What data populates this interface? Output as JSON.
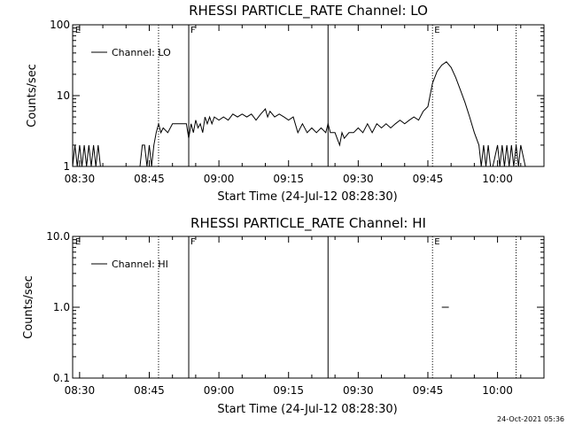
{
  "footer": {
    "timestamp": "24-Oct-2021 05:36"
  },
  "chart_data": [
    {
      "type": "line",
      "title": "RHESSI PARTICLE_RATE Channel: LO",
      "xlabel": "Start Time (24-Jul-12 08:28:30)",
      "ylabel": "Counts/sec",
      "yscale": "log",
      "ylim": [
        1,
        100
      ],
      "xlim": [
        "08:28:30",
        "10:10:00"
      ],
      "x_ticks": [
        "08:30",
        "08:45",
        "09:00",
        "09:15",
        "09:30",
        "09:45",
        "10:00"
      ],
      "y_ticks": [
        "1",
        "10",
        "100"
      ],
      "legend": {
        "placement": "top-left",
        "entries": [
          "Channel: LO"
        ]
      },
      "markers": [
        {
          "label": "E",
          "time": "08:28:40",
          "style": "none"
        },
        {
          "label": "",
          "time": "08:47:00",
          "style": "dotted"
        },
        {
          "label": "F",
          "time": "08:53:30",
          "style": "solid"
        },
        {
          "label": "",
          "time": "09:23:30",
          "style": "solid"
        },
        {
          "label": "E",
          "time": "09:46:00",
          "style": "dotted"
        },
        {
          "label": "",
          "time": "10:04:00",
          "style": "dotted"
        }
      ],
      "series": [
        {
          "name": "Channel: LO",
          "points": [
            [
              "08:28:30",
              1
            ],
            [
              "08:29:00",
              2
            ],
            [
              "08:29:30",
              1
            ],
            [
              "08:30:00",
              2
            ],
            [
              "08:30:30",
              1
            ],
            [
              "08:31:00",
              2
            ],
            [
              "08:31:30",
              1
            ],
            [
              "08:32:00",
              2
            ],
            [
              "08:32:30",
              1
            ],
            [
              "08:33:00",
              2
            ],
            [
              "08:33:30",
              1
            ],
            [
              "08:34:00",
              2
            ],
            [
              "08:34:30",
              1
            ],
            [
              "08:35:00",
              1
            ],
            [
              "08:43:00",
              1
            ],
            [
              "08:43:30",
              2
            ],
            [
              "08:44:00",
              2
            ],
            [
              "08:44:30",
              1
            ],
            [
              "08:45:00",
              2
            ],
            [
              "08:45:30",
              1
            ],
            [
              "08:46:00",
              2
            ],
            [
              "08:46:30",
              3
            ],
            [
              "08:47:00",
              4
            ],
            [
              "08:47:30",
              3
            ],
            [
              "08:48:00",
              3.5
            ],
            [
              "08:49:00",
              3
            ],
            [
              "08:50:00",
              4
            ],
            [
              "08:51:00",
              4
            ],
            [
              "08:52:00",
              4
            ],
            [
              "08:53:00",
              4
            ],
            [
              "08:53:30",
              2.5
            ],
            [
              "08:54:00",
              4
            ],
            [
              "08:54:30",
              3
            ],
            [
              "08:55:00",
              4.5
            ],
            [
              "08:55:30",
              3.5
            ],
            [
              "08:56:00",
              4
            ],
            [
              "08:56:30",
              3
            ],
            [
              "08:57:00",
              5
            ],
            [
              "08:57:30",
              4
            ],
            [
              "08:58:00",
              5
            ],
            [
              "08:58:30",
              4
            ],
            [
              "08:59:00",
              5
            ],
            [
              "09:00:00",
              4.5
            ],
            [
              "09:01:00",
              5
            ],
            [
              "09:02:00",
              4.5
            ],
            [
              "09:03:00",
              5.5
            ],
            [
              "09:04:00",
              5
            ],
            [
              "09:05:00",
              5.5
            ],
            [
              "09:06:00",
              5
            ],
            [
              "09:07:00",
              5.5
            ],
            [
              "09:08:00",
              4.5
            ],
            [
              "09:09:00",
              5.5
            ],
            [
              "09:10:00",
              6.5
            ],
            [
              "09:10:30",
              5
            ],
            [
              "09:11:00",
              6
            ],
            [
              "09:12:00",
              5
            ],
            [
              "09:13:00",
              5.5
            ],
            [
              "09:14:00",
              5
            ],
            [
              "09:15:00",
              4.5
            ],
            [
              "09:16:00",
              5
            ],
            [
              "09:17:00",
              3
            ],
            [
              "09:18:00",
              4
            ],
            [
              "09:19:00",
              3
            ],
            [
              "09:20:00",
              3.5
            ],
            [
              "09:21:00",
              3
            ],
            [
              "09:22:00",
              3.5
            ],
            [
              "09:23:00",
              3
            ],
            [
              "09:23:30",
              4
            ],
            [
              "09:24:00",
              3
            ],
            [
              "09:25:00",
              3
            ],
            [
              "09:26:00",
              2
            ],
            [
              "09:26:30",
              3
            ],
            [
              "09:27:00",
              2.5
            ],
            [
              "09:28:00",
              3
            ],
            [
              "09:29:00",
              3
            ],
            [
              "09:30:00",
              3.5
            ],
            [
              "09:31:00",
              3
            ],
            [
              "09:32:00",
              4
            ],
            [
              "09:33:00",
              3
            ],
            [
              "09:34:00",
              4
            ],
            [
              "09:35:00",
              3.5
            ],
            [
              "09:36:00",
              4
            ],
            [
              "09:37:00",
              3.5
            ],
            [
              "09:38:00",
              4
            ],
            [
              "09:39:00",
              4.5
            ],
            [
              "09:40:00",
              4
            ],
            [
              "09:41:00",
              4.5
            ],
            [
              "09:42:00",
              5
            ],
            [
              "09:43:00",
              4.5
            ],
            [
              "09:44:00",
              6
            ],
            [
              "09:45:00",
              7
            ],
            [
              "09:46:00",
              15
            ],
            [
              "09:47:00",
              22
            ],
            [
              "09:48:00",
              27
            ],
            [
              "09:49:00",
              30
            ],
            [
              "09:50:00",
              25
            ],
            [
              "09:51:00",
              18
            ],
            [
              "09:52:00",
              12
            ],
            [
              "09:53:00",
              8
            ],
            [
              "09:54:00",
              5
            ],
            [
              "09:55:00",
              3
            ],
            [
              "09:56:00",
              2
            ],
            [
              "09:56:30",
              1
            ],
            [
              "09:57:00",
              2
            ],
            [
              "09:57:30",
              1
            ],
            [
              "09:58:00",
              2
            ],
            [
              "09:58:30",
              1
            ],
            [
              "09:59:00",
              1
            ],
            [
              "10:00:00",
              2
            ],
            [
              "10:00:30",
              1
            ],
            [
              "10:01:00",
              2
            ],
            [
              "10:01:30",
              1
            ],
            [
              "10:02:00",
              2
            ],
            [
              "10:02:30",
              1
            ],
            [
              "10:03:00",
              2
            ],
            [
              "10:03:30",
              1
            ],
            [
              "10:04:00",
              2
            ],
            [
              "10:04:30",
              1
            ],
            [
              "10:05:00",
              2
            ],
            [
              "10:06:00",
              1
            ]
          ]
        }
      ]
    },
    {
      "type": "line",
      "title": "RHESSI PARTICLE_RATE Channel: HI",
      "xlabel": "Start Time (24-Jul-12 08:28:30)",
      "ylabel": "Counts/sec",
      "yscale": "log",
      "ylim": [
        0.1,
        10
      ],
      "xlim": [
        "08:28:30",
        "10:10:00"
      ],
      "x_ticks": [
        "08:30",
        "08:45",
        "09:00",
        "09:15",
        "09:30",
        "09:45",
        "10:00"
      ],
      "y_ticks": [
        "0.1",
        "1.0",
        "10.0"
      ],
      "legend": {
        "placement": "top-left",
        "entries": [
          "Channel: HI"
        ]
      },
      "markers": [
        {
          "label": "E",
          "time": "08:28:40",
          "style": "none"
        },
        {
          "label": "",
          "time": "08:47:00",
          "style": "dotted"
        },
        {
          "label": "F",
          "time": "08:53:30",
          "style": "solid"
        },
        {
          "label": "",
          "time": "09:23:30",
          "style": "solid"
        },
        {
          "label": "E",
          "time": "09:46:00",
          "style": "dotted"
        },
        {
          "label": "",
          "time": "10:04:00",
          "style": "dotted"
        }
      ],
      "series": [
        {
          "name": "Channel: HI",
          "points": [
            [
              "09:48:00",
              1
            ],
            [
              "09:49:30",
              1
            ]
          ]
        }
      ]
    }
  ]
}
